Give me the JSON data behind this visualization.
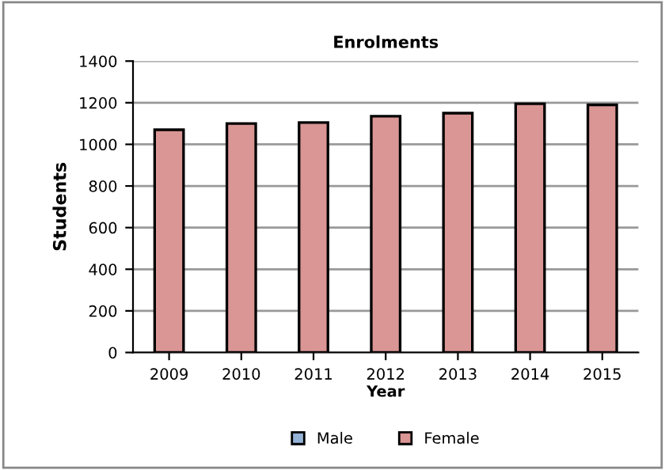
{
  "chart_data": {
    "type": "bar",
    "title": "Enrolments",
    "xlabel": "Year",
    "ylabel": "Students",
    "categories": [
      "2009",
      "2010",
      "2011",
      "2012",
      "2013",
      "2014",
      "2015"
    ],
    "series": [
      {
        "name": "Male",
        "color": "#95b3d7",
        "values": [
          null,
          null,
          null,
          null,
          null,
          null,
          null
        ]
      },
      {
        "name": "Female",
        "color": "#d99694",
        "values": [
          1070,
          1100,
          1105,
          1135,
          1150,
          1195,
          1190
        ]
      }
    ],
    "ylim": [
      0,
      1400
    ],
    "yticks": [
      0,
      200,
      400,
      600,
      800,
      1000,
      1200,
      1400
    ],
    "grid": "y",
    "legend": "bottom"
  }
}
